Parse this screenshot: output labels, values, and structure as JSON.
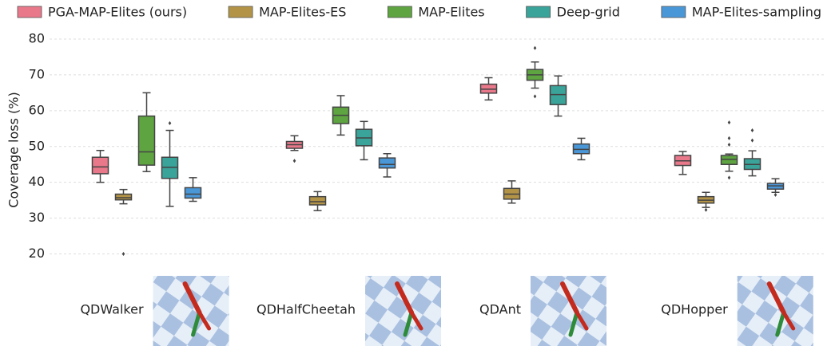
{
  "chart_data": {
    "type": "box",
    "ylabel": "Coverage loss (%)",
    "ylim": [
      15,
      82
    ],
    "yticks": [
      20,
      30,
      40,
      50,
      60,
      70,
      80
    ],
    "grid": true,
    "legend": "top",
    "categories": [
      "QDWalker",
      "QDHalfCheetah",
      "QDAnt",
      "QDHopper"
    ],
    "series": [
      {
        "name": "PGA-MAP-Elites (ours)",
        "color": "#e8788a",
        "values": [
          {
            "min": 40,
            "q1": 42.4,
            "median": 44.3,
            "q3": 47,
            "max": 48.9,
            "outliers": []
          },
          {
            "min": 48.9,
            "q1": 49.5,
            "median": 50.5,
            "q3": 51.4,
            "max": 53,
            "outliers": [
              46
            ]
          },
          {
            "min": 63,
            "q1": 64.9,
            "median": 66,
            "q3": 67.4,
            "max": 69.2,
            "outliers": []
          },
          {
            "min": 42.2,
            "q1": 44.7,
            "median": 46,
            "q3": 47.5,
            "max": 48.6,
            "outliers": []
          }
        ]
      },
      {
        "name": "MAP-Elites-ES",
        "color": "#b39447",
        "values": [
          {
            "min": 34,
            "q1": 35.1,
            "median": 35.7,
            "q3": 36.7,
            "max": 38,
            "outliers": [
              20
            ]
          },
          {
            "min": 32.1,
            "q1": 33.7,
            "median": 34.6,
            "q3": 36,
            "max": 37.4,
            "outliers": []
          },
          {
            "min": 34.2,
            "q1": 35.3,
            "median": 36.7,
            "q3": 38.3,
            "max": 40.4,
            "outliers": []
          },
          {
            "min": 33,
            "q1": 34.2,
            "median": 35,
            "q3": 36,
            "max": 37.2,
            "outliers": [
              32.3
            ]
          }
        ]
      },
      {
        "name": "MAP-Elites",
        "color": "#5ea440",
        "values": [
          {
            "min": 43,
            "q1": 44.8,
            "median": 48.5,
            "q3": 58.5,
            "max": 65,
            "outliers": []
          },
          {
            "min": 53.2,
            "q1": 56.4,
            "median": 58.7,
            "q3": 61,
            "max": 64.2,
            "outliers": []
          },
          {
            "min": 66.3,
            "q1": 68.5,
            "median": 70,
            "q3": 71.5,
            "max": 73.6,
            "outliers": [
              77.5,
              64
            ]
          },
          {
            "min": 43.1,
            "q1": 45,
            "median": 46.4,
            "q3": 47.5,
            "max": 47.9,
            "outliers": [
              56.7,
              52.3,
              50.5,
              41.3
            ]
          }
        ]
      },
      {
        "name": "Deep-grid",
        "color": "#3aa39a",
        "values": [
          {
            "min": 33.3,
            "q1": 41.1,
            "median": 44.2,
            "q3": 47,
            "max": 54.5,
            "outliers": [
              56.5
            ]
          },
          {
            "min": 46.3,
            "q1": 50.2,
            "median": 52.4,
            "q3": 54.8,
            "max": 57,
            "outliers": []
          },
          {
            "min": 58.5,
            "q1": 61.7,
            "median": 64.5,
            "q3": 67,
            "max": 69.7,
            "outliers": []
          },
          {
            "min": 41.8,
            "q1": 43.6,
            "median": 45,
            "q3": 46.6,
            "max": 48.8,
            "outliers": [
              54.5,
              51.7
            ]
          }
        ]
      },
      {
        "name": "MAP-Elites-sampling",
        "color": "#4a97d8",
        "values": [
          {
            "min": 34.7,
            "q1": 35.6,
            "median": 36.7,
            "q3": 38.5,
            "max": 41.3,
            "outliers": []
          },
          {
            "min": 41.5,
            "q1": 44,
            "median": 45,
            "q3": 46.8,
            "max": 48,
            "outliers": []
          },
          {
            "min": 46.3,
            "q1": 48,
            "median": 49.2,
            "q3": 50.7,
            "max": 52.3,
            "outliers": []
          },
          {
            "min": 37.2,
            "q1": 38.1,
            "median": 39,
            "q3": 39.7,
            "max": 41,
            "outliers": [
              36.5
            ]
          }
        ]
      }
    ]
  }
}
